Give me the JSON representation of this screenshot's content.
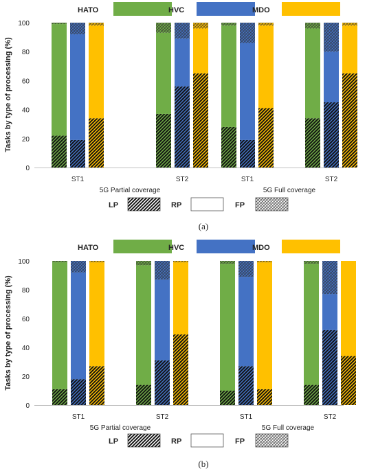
{
  "legend": {
    "algorithms": [
      {
        "name": "HATO",
        "color": "#70ad47"
      },
      {
        "name": "HVC",
        "color": "#4472c4"
      },
      {
        "name": "MDO",
        "color": "#ffc000"
      }
    ],
    "processing_types": [
      {
        "name": "LP",
        "pattern": "dense-diagonal-hatch"
      },
      {
        "name": "RP",
        "pattern": "solid"
      },
      {
        "name": "FP",
        "pattern": "light-crosshatch"
      }
    ]
  },
  "colors": {
    "hato": "#70ad47",
    "hvc": "#4472c4",
    "mdo": "#ffc000"
  },
  "chart_data": [
    {
      "type": "bar",
      "stacked": true,
      "caption": "(a)",
      "ylabel": "Tasks by type of processing (%)",
      "ylim": [
        0,
        100
      ],
      "yticks": [
        0,
        20,
        40,
        60,
        80,
        100
      ],
      "groups": [
        {
          "label": "ST1",
          "coverage": "5G Partial coverage"
        },
        {
          "label": "ST2",
          "coverage": "5G Partial coverage"
        },
        {
          "label": "ST1",
          "coverage": "5G Full coverage"
        },
        {
          "label": "ST2",
          "coverage": "5G Full coverage"
        }
      ],
      "group_labels": [
        "5G Partial coverage",
        "5G Full coverage"
      ],
      "series": [
        {
          "name": "HATO",
          "LP": [
            22,
            37,
            28,
            34
          ],
          "RP": [
            77,
            56,
            70,
            62
          ],
          "FP": [
            1,
            7,
            2,
            4
          ]
        },
        {
          "name": "HVC",
          "LP": [
            19,
            56,
            19,
            45
          ],
          "RP": [
            73,
            33,
            67,
            35
          ],
          "FP": [
            8,
            11,
            14,
            20
          ]
        },
        {
          "name": "MDO",
          "LP": [
            34,
            65,
            41,
            65
          ],
          "RP": [
            64,
            31,
            57,
            33
          ],
          "FP": [
            2,
            4,
            2,
            2
          ]
        }
      ]
    },
    {
      "type": "bar",
      "stacked": true,
      "caption": "(b)",
      "ylabel": "Tasks by type of processing (%)",
      "ylim": [
        0,
        100
      ],
      "yticks": [
        0,
        20,
        40,
        60,
        80,
        100
      ],
      "groups": [
        {
          "label": "ST1",
          "coverage": "5G Partial coverage"
        },
        {
          "label": "ST2",
          "coverage": "5G Partial coverage"
        },
        {
          "label": "ST1",
          "coverage": "5G Full coverage"
        },
        {
          "label": "ST2",
          "coverage": "5G Full coverage"
        }
      ],
      "group_labels": [
        "5G Partial coverage",
        "5G Full coverage"
      ],
      "series": [
        {
          "name": "HATO",
          "LP": [
            11,
            14,
            10,
            14
          ],
          "RP": [
            88,
            83,
            88,
            84
          ],
          "FP": [
            1,
            3,
            2,
            2
          ]
        },
        {
          "name": "HVC",
          "LP": [
            18,
            31,
            27,
            52
          ],
          "RP": [
            74,
            56,
            62,
            25
          ],
          "FP": [
            8,
            13,
            11,
            23
          ]
        },
        {
          "name": "MDO",
          "LP": [
            27,
            49,
            11,
            34
          ],
          "RP": [
            72,
            50,
            88,
            66
          ],
          "FP": [
            1,
            1,
            1,
            0
          ]
        }
      ]
    }
  ]
}
